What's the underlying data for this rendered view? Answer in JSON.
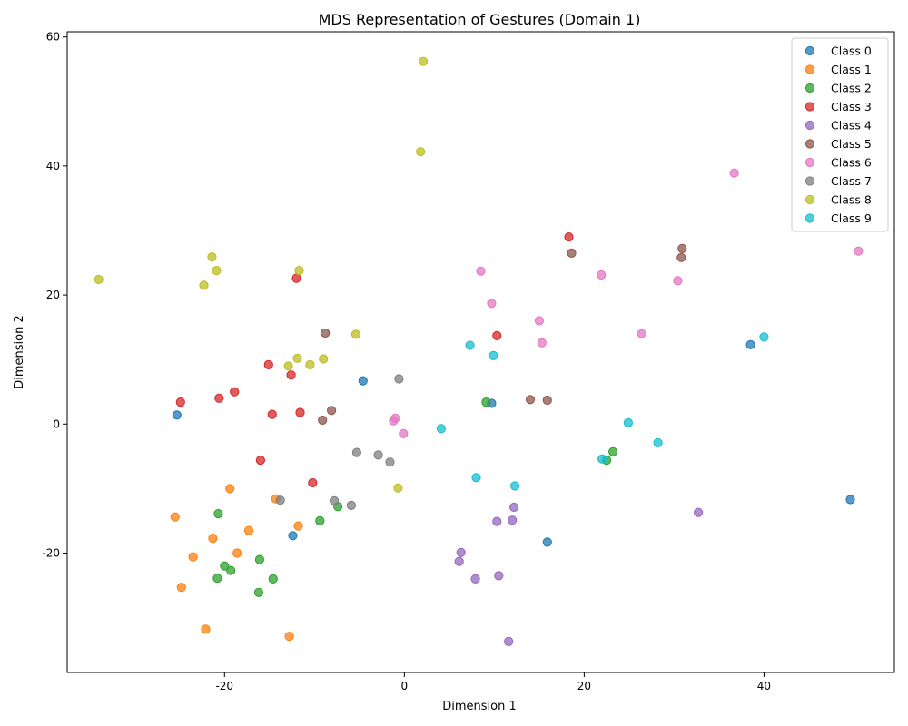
{
  "chart_data": {
    "type": "scatter",
    "title": "MDS Representation of Gestures (Domain 1)",
    "xlabel": "Dimension 1",
    "ylabel": "Dimension 2",
    "xlim": [
      -37.5,
      54.5
    ],
    "ylim": [
      -38.5,
      60.8
    ],
    "xticks": [
      -20,
      0,
      20,
      40
    ],
    "yticks": [
      -20,
      0,
      20,
      40,
      60
    ],
    "grid": false,
    "legend_position": "top-right",
    "series": [
      {
        "name": "Class 0",
        "color": "#1f77b4",
        "points": [
          [
            -25.3,
            1.4
          ],
          [
            -4.6,
            6.7
          ],
          [
            9.7,
            3.2
          ],
          [
            -12.4,
            -17.3
          ],
          [
            15.9,
            -18.3
          ],
          [
            38.5,
            12.3
          ],
          [
            49.6,
            -11.7
          ]
        ]
      },
      {
        "name": "Class 1",
        "color": "#ff7f0e",
        "points": [
          [
            -19.4,
            -10.0
          ],
          [
            -14.3,
            -11.6
          ],
          [
            -25.5,
            -14.4
          ],
          [
            -17.3,
            -16.5
          ],
          [
            -21.3,
            -17.7
          ],
          [
            -11.8,
            -15.8
          ],
          [
            -18.6,
            -20.0
          ],
          [
            -23.5,
            -20.6
          ],
          [
            -24.8,
            -25.3
          ],
          [
            -22.1,
            -31.8
          ],
          [
            -12.8,
            -32.9
          ]
        ]
      },
      {
        "name": "Class 2",
        "color": "#2ca02c",
        "points": [
          [
            9.1,
            3.4
          ],
          [
            23.2,
            -4.3
          ],
          [
            22.5,
            -5.6
          ],
          [
            -20.7,
            -13.9
          ],
          [
            -7.4,
            -12.8
          ],
          [
            -9.4,
            -15.0
          ],
          [
            -16.1,
            -21.0
          ],
          [
            -20.0,
            -22.0
          ],
          [
            -19.3,
            -22.7
          ],
          [
            -20.8,
            -23.9
          ],
          [
            -14.6,
            -24.0
          ],
          [
            -16.2,
            -26.1
          ]
        ]
      },
      {
        "name": "Class 3",
        "color": "#d62728",
        "points": [
          [
            18.3,
            29.0
          ],
          [
            -12.0,
            22.6
          ],
          [
            10.3,
            13.7
          ],
          [
            -15.1,
            9.2
          ],
          [
            -12.6,
            7.6
          ],
          [
            -18.9,
            5.0
          ],
          [
            -20.6,
            4.0
          ],
          [
            -24.9,
            3.4
          ],
          [
            -14.7,
            1.5
          ],
          [
            -11.6,
            1.8
          ],
          [
            -16.0,
            -5.6
          ],
          [
            -10.2,
            -9.1
          ]
        ]
      },
      {
        "name": "Class 4",
        "color": "#9467bd",
        "points": [
          [
            12.2,
            -12.9
          ],
          [
            32.7,
            -13.7
          ],
          [
            10.3,
            -15.1
          ],
          [
            12.0,
            -14.9
          ],
          [
            6.3,
            -19.9
          ],
          [
            6.1,
            -21.3
          ],
          [
            10.5,
            -23.5
          ],
          [
            7.9,
            -24.0
          ],
          [
            11.6,
            -33.7
          ]
        ]
      },
      {
        "name": "Class 5",
        "color": "#8c564b",
        "points": [
          [
            30.9,
            27.2
          ],
          [
            30.8,
            25.8
          ],
          [
            18.6,
            26.5
          ],
          [
            -8.8,
            14.1
          ],
          [
            14.0,
            3.8
          ],
          [
            15.9,
            3.7
          ],
          [
            -8.1,
            2.1
          ],
          [
            -9.1,
            0.6
          ]
        ]
      },
      {
        "name": "Class 6",
        "color": "#e377c2",
        "points": [
          [
            36.7,
            38.9
          ],
          [
            50.5,
            26.8
          ],
          [
            8.5,
            23.7
          ],
          [
            21.9,
            23.1
          ],
          [
            30.4,
            22.2
          ],
          [
            9.7,
            18.7
          ],
          [
            15.0,
            16.0
          ],
          [
            26.4,
            14.0
          ],
          [
            15.3,
            12.6
          ],
          [
            -1.0,
            0.9
          ],
          [
            -1.2,
            0.5
          ],
          [
            -0.1,
            -1.5
          ]
        ]
      },
      {
        "name": "Class 7",
        "color": "#7f7f7f",
        "points": [
          [
            -0.6,
            7.0
          ],
          [
            -5.3,
            -4.4
          ],
          [
            -2.9,
            -4.8
          ],
          [
            -1.6,
            -5.9
          ],
          [
            -13.8,
            -11.8
          ],
          [
            -7.8,
            -11.9
          ],
          [
            -5.9,
            -12.6
          ]
        ]
      },
      {
        "name": "Class 8",
        "color": "#bcbd22",
        "points": [
          [
            2.1,
            56.2
          ],
          [
            1.8,
            42.2
          ],
          [
            -21.4,
            25.9
          ],
          [
            -20.9,
            23.8
          ],
          [
            -11.7,
            23.8
          ],
          [
            -34.0,
            22.4
          ],
          [
            -22.3,
            21.5
          ],
          [
            -5.4,
            13.9
          ],
          [
            -11.9,
            10.2
          ],
          [
            -9.0,
            10.1
          ],
          [
            -10.5,
            9.2
          ],
          [
            -12.9,
            9.0
          ],
          [
            -0.7,
            -9.9
          ]
        ]
      },
      {
        "name": "Class 9",
        "color": "#17becf",
        "points": [
          [
            40.0,
            13.5
          ],
          [
            7.3,
            12.2
          ],
          [
            9.9,
            10.6
          ],
          [
            24.9,
            0.2
          ],
          [
            4.1,
            -0.7
          ],
          [
            28.2,
            -2.9
          ],
          [
            22.0,
            -5.4
          ],
          [
            8.0,
            -8.3
          ],
          [
            12.3,
            -9.6
          ]
        ]
      }
    ]
  }
}
